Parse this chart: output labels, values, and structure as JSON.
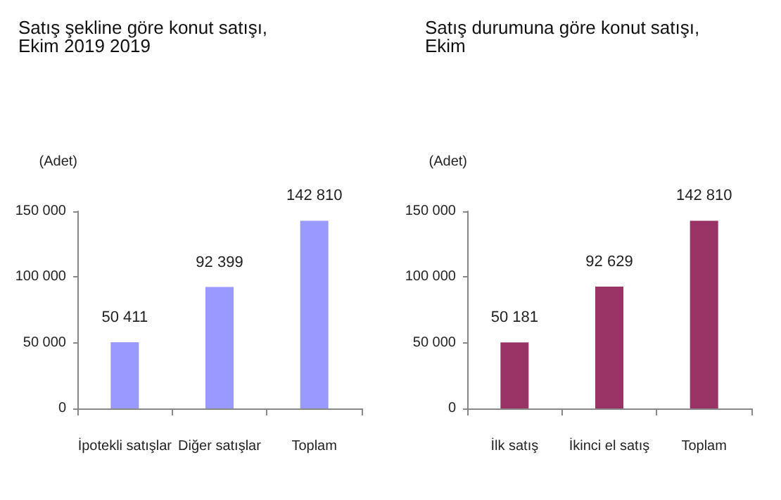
{
  "chart_data": [
    {
      "type": "bar",
      "title": "Satış şekline göre konut satışı, Ekim 2019 2019",
      "ylabel": "(Adet)",
      "categories": [
        "İpotekli satışlar",
        "Diğer satışlar",
        "Toplam"
      ],
      "values": [
        50411,
        92399,
        142810
      ],
      "value_labels": [
        "50 411",
        "92 399",
        "142 810"
      ],
      "color": "#9999ff",
      "ylim": [
        0,
        150000
      ],
      "yticks": [
        {
          "value": 0,
          "label": "0"
        },
        {
          "value": 50000,
          "label": "50 000"
        },
        {
          "value": 100000,
          "label": "100 000"
        },
        {
          "value": 150000,
          "label": "150 000"
        }
      ]
    },
    {
      "type": "bar",
      "title": "Satış durumuna göre konut satışı, Ekim",
      "ylabel": "(Adet)",
      "categories": [
        "İlk satış",
        "İkinci el satış",
        "Toplam"
      ],
      "values": [
        50181,
        92629,
        142810
      ],
      "value_labels": [
        "50 181",
        "92 629",
        "142 810"
      ],
      "color": "#993366",
      "ylim": [
        0,
        150000
      ],
      "yticks": [
        {
          "value": 0,
          "label": "0"
        },
        {
          "value": 50000,
          "label": "50 000"
        },
        {
          "value": 100000,
          "label": "100 000"
        },
        {
          "value": 150000,
          "label": "150 000"
        }
      ]
    }
  ]
}
